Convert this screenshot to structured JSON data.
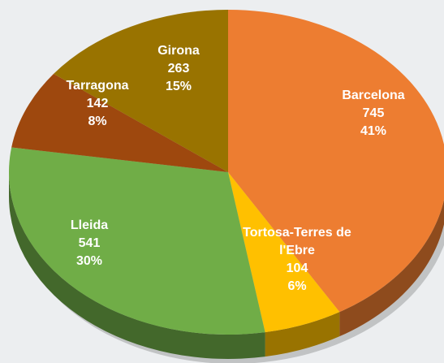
{
  "chart_data": {
    "type": "pie",
    "categories": [
      "Barcelona",
      "Tortosa-Terres de l'Ebre",
      "Lleida",
      "Tarragona",
      "Girona"
    ],
    "values": [
      745,
      104,
      541,
      142,
      263
    ],
    "percent_labels": [
      "41%",
      "6%",
      "30%",
      "8%",
      "15%"
    ],
    "colors": [
      "#ED7D31",
      "#FFC000",
      "#70AD47",
      "#9E480E",
      "#997300"
    ]
  }
}
